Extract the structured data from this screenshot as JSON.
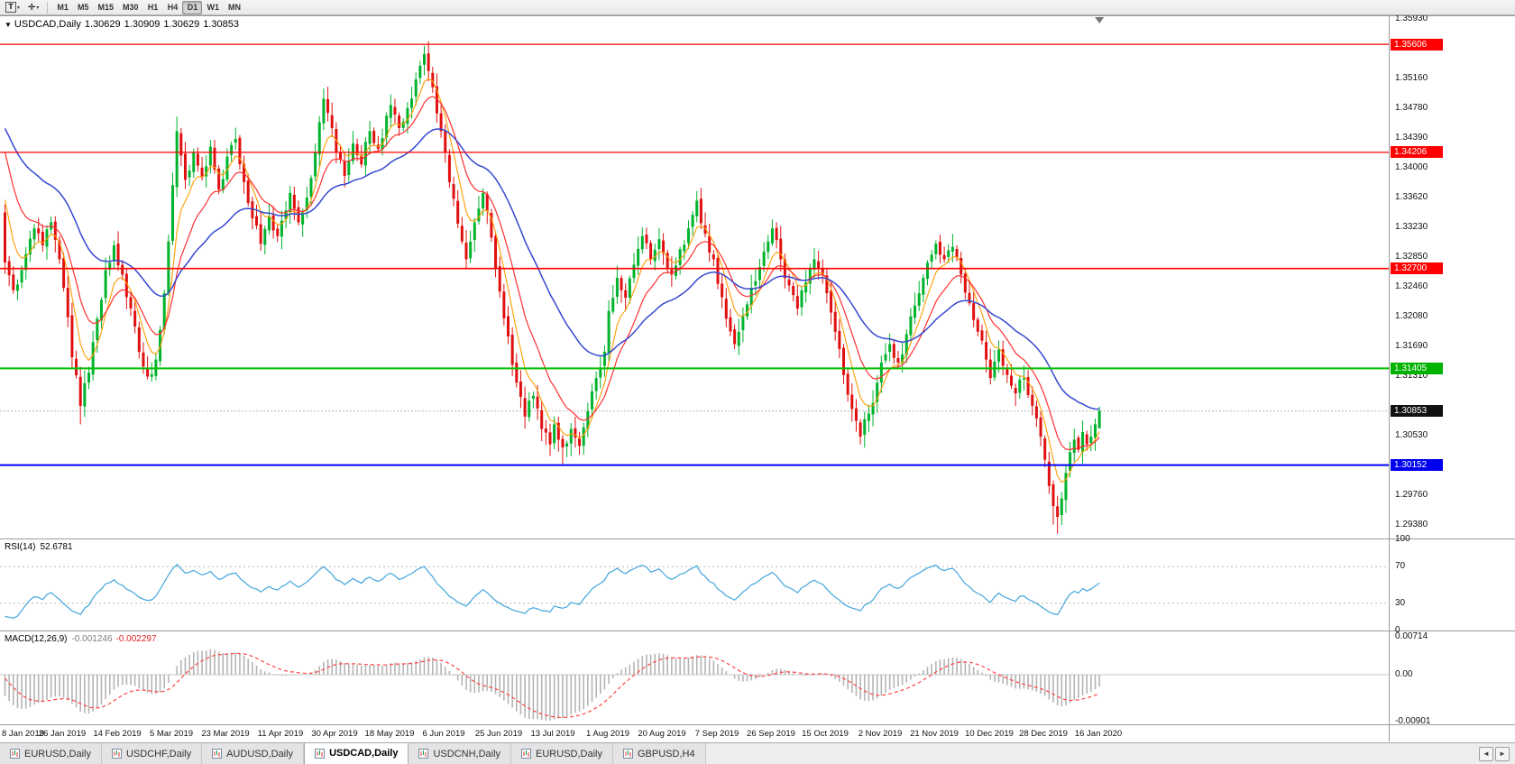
{
  "toolbar": {
    "tools": [
      {
        "label": "T",
        "name": "text-tool"
      },
      {
        "label": "✛",
        "name": "crosshair-tool"
      }
    ],
    "timeframes": [
      "M1",
      "M5",
      "M15",
      "M30",
      "H1",
      "H4",
      "D1",
      "W1",
      "MN"
    ],
    "active_timeframe": "D1"
  },
  "chart": {
    "header": {
      "symbol": "USDCAD,Daily",
      "open": "1.30629",
      "high": "1.30909",
      "low": "1.30629",
      "close": "1.30853"
    },
    "price_axis": {
      "labels": [
        {
          "text": "1.35930",
          "v": 1.3593
        },
        {
          "text": "1.35160",
          "v": 1.3516
        },
        {
          "text": "1.34780",
          "v": 1.3478
        },
        {
          "text": "1.34390",
          "v": 1.3439
        },
        {
          "text": "1.34000",
          "v": 1.34
        },
        {
          "text": "1.33620",
          "v": 1.3362
        },
        {
          "text": "1.33230",
          "v": 1.3323
        },
        {
          "text": "1.32850",
          "v": 1.3285
        },
        {
          "text": "1.32460",
          "v": 1.3246
        },
        {
          "text": "1.32080",
          "v": 1.3208
        },
        {
          "text": "1.31690",
          "v": 1.3169
        },
        {
          "text": "1.31310",
          "v": 1.3131
        },
        {
          "text": "1.30530",
          "v": 1.3053
        },
        {
          "text": "1.29760",
          "v": 1.2976
        },
        {
          "text": "1.29380",
          "v": 1.2938
        }
      ],
      "badges": [
        {
          "text": "1.35606",
          "v": 1.35606,
          "color": "#ff0000"
        },
        {
          "text": "1.34206",
          "v": 1.34206,
          "color": "#ff0000"
        },
        {
          "text": "1.32700",
          "v": 1.327,
          "color": "#ff0000"
        },
        {
          "text": "1.31405",
          "v": 1.31405,
          "color": "#00b300"
        },
        {
          "text": "1.30853",
          "v": 1.30853,
          "color": "#111111"
        },
        {
          "text": "1.30152",
          "v": 1.30152,
          "color": "#0000ee"
        }
      ]
    },
    "time_axis": {
      "labels": [
        "8 Jan 2019",
        "26 Jan 2019",
        "14 Feb 2019",
        "5 Mar 2019",
        "23 Mar 2019",
        "11 Apr 2019",
        "30 Apr 2019",
        "18 May 2019",
        "6 Jun 2019",
        "25 Jun 2019",
        "13 Jul 2019",
        "1 Aug 2019",
        "20 Aug 2019",
        "7 Sep 2019",
        "26 Sep 2019",
        "15 Oct 2019",
        "2 Nov 2019",
        "21 Nov 2019",
        "10 Dec 2019",
        "28 Dec 2019",
        "16 Jan 2020"
      ]
    }
  },
  "indicators": {
    "rsi": {
      "title": "RSI(14)",
      "value": "52.6781",
      "color": "#42a5dd",
      "scale": [
        {
          "text": "100",
          "v": 100
        },
        {
          "text": "70",
          "v": 70
        },
        {
          "text": "30",
          "v": 30
        },
        {
          "text": "0",
          "v": 0
        }
      ]
    },
    "macd": {
      "title": "MACD(12,26,9)",
      "value_main": "-0.001246",
      "value_signal": "-0.002297",
      "histogram_color": "#b4b4b4",
      "signal_color": "#ff4444",
      "scale": [
        {
          "text": "0.00714",
          "v": 0.00714
        },
        {
          "text": "0.00",
          "v": 0
        },
        {
          "text": "-0.00901",
          "v": -0.00901
        }
      ]
    }
  },
  "tabs": {
    "items": [
      {
        "label": "EURUSD,Daily",
        "active": false
      },
      {
        "label": "USDCHF,Daily",
        "active": false
      },
      {
        "label": "AUDUSD,Daily",
        "active": false
      },
      {
        "label": "USDCAD,Daily",
        "active": true
      },
      {
        "label": "USDCNH,Daily",
        "active": false
      },
      {
        "label": "EURUSD,Daily",
        "active": false
      },
      {
        "label": "GBPUSD,H4",
        "active": false
      }
    ],
    "nav": {
      "left": "◄",
      "right": "►"
    }
  },
  "chart_data": {
    "type": "candlestick",
    "symbol": "USDCAD",
    "timeframe": "Daily",
    "price_range": [
      1.292,
      1.3597
    ],
    "bars_count": 262,
    "noise": 0.0016,
    "candle_colors": {
      "bull": "#00b32c",
      "bear": "#e01010"
    },
    "hlines": [
      {
        "v": 1.35606,
        "color": "#ff0000",
        "w": 1.2
      },
      {
        "v": 1.34206,
        "color": "#ff0000",
        "w": 1.2
      },
      {
        "v": 1.327,
        "color": "#ff0000",
        "w": 1.6
      },
      {
        "v": 1.31405,
        "color": "#00c000",
        "w": 2
      },
      {
        "v": 1.30152,
        "color": "#0000ff",
        "w": 2
      }
    ],
    "current_price": {
      "v": 1.30853,
      "line_color": "#b8b8b8"
    },
    "moving_averages": [
      {
        "period": 6,
        "color": "#ff9d00",
        "w": 1.1
      },
      {
        "period": 13,
        "color": "#ff3030",
        "w": 1.2
      },
      {
        "period": 34,
        "color": "#3548cf",
        "w": 1.5
      }
    ],
    "last_bar": {
      "open": 1.30629,
      "high": 1.30909,
      "low": 1.30629,
      "close": 1.30853
    },
    "wick_overrides": {
      "18": {
        "l": 1.3068
      },
      "41": {
        "h": 1.3467
      },
      "100": {
        "h": 1.3559
      },
      "133": {
        "l": 1.3016
      },
      "250": {
        "l": 1.2938
      },
      "251": {
        "l": 1.2926
      }
    },
    "prehistory_anchors": [
      [
        0,
        1.315
      ],
      [
        15,
        1.331
      ],
      [
        30,
        1.349
      ],
      [
        42,
        1.358
      ],
      [
        48,
        1.36
      ],
      [
        52,
        1.35
      ],
      [
        55,
        1.342
      ],
      [
        57,
        1.338
      ],
      [
        58,
        1.3355
      ],
      [
        59,
        1.334
      ]
    ],
    "close_anchors": [
      [
        0,
        1.3278
      ],
      [
        2,
        1.3242
      ],
      [
        4,
        1.3268
      ],
      [
        7,
        1.3322
      ],
      [
        9,
        1.33
      ],
      [
        11,
        1.333
      ],
      [
        13,
        1.3282
      ],
      [
        14,
        1.3245
      ],
      [
        16,
        1.3155
      ],
      [
        18,
        1.3092
      ],
      [
        20,
        1.3135
      ],
      [
        22,
        1.3205
      ],
      [
        24,
        1.3268
      ],
      [
        26,
        1.33
      ],
      [
        28,
        1.3262
      ],
      [
        30,
        1.3218
      ],
      [
        32,
        1.3162
      ],
      [
        34,
        1.313
      ],
      [
        36,
        1.3152
      ],
      [
        38,
        1.3238
      ],
      [
        39,
        1.3305
      ],
      [
        40,
        1.3378
      ],
      [
        41,
        1.3448
      ],
      [
        43,
        1.3385
      ],
      [
        45,
        1.342
      ],
      [
        47,
        1.3388
      ],
      [
        49,
        1.3428
      ],
      [
        51,
        1.3372
      ],
      [
        53,
        1.3415
      ],
      [
        55,
        1.3438
      ],
      [
        57,
        1.3382
      ],
      [
        59,
        1.3335
      ],
      [
        61,
        1.3302
      ],
      [
        63,
        1.3338
      ],
      [
        65,
        1.3312
      ],
      [
        66,
        1.3332
      ],
      [
        68,
        1.3368
      ],
      [
        70,
        1.333
      ],
      [
        72,
        1.3362
      ],
      [
        74,
        1.342
      ],
      [
        76,
        1.349
      ],
      [
        78,
        1.3452
      ],
      [
        79,
        1.342
      ],
      [
        81,
        1.339
      ],
      [
        83,
        1.3432
      ],
      [
        85,
        1.3405
      ],
      [
        87,
        1.3448
      ],
      [
        89,
        1.3425
      ],
      [
        91,
        1.3468
      ],
      [
        92,
        1.3482
      ],
      [
        94,
        1.3452
      ],
      [
        96,
        1.3478
      ],
      [
        98,
        1.3515
      ],
      [
        100,
        1.3548
      ],
      [
        102,
        1.3505
      ],
      [
        104,
        1.3448
      ],
      [
        105,
        1.342
      ],
      [
        106,
        1.3382
      ],
      [
        108,
        1.3328
      ],
      [
        110,
        1.3282
      ],
      [
        112,
        1.333
      ],
      [
        114,
        1.3368
      ],
      [
        116,
        1.331
      ],
      [
        118,
        1.324
      ],
      [
        120,
        1.3182
      ],
      [
        122,
        1.3122
      ],
      [
        124,
        1.3078
      ],
      [
        126,
        1.3105
      ],
      [
        128,
        1.3062
      ],
      [
        130,
        1.3042
      ],
      [
        131,
        1.3068
      ],
      [
        133,
        1.3038
      ],
      [
        135,
        1.3062
      ],
      [
        137,
        1.304
      ],
      [
        139,
        1.3085
      ],
      [
        141,
        1.3128
      ],
      [
        143,
        1.3162
      ],
      [
        144,
        1.3215
      ],
      [
        146,
        1.3258
      ],
      [
        148,
        1.3232
      ],
      [
        150,
        1.3275
      ],
      [
        152,
        1.3312
      ],
      [
        154,
        1.3282
      ],
      [
        156,
        1.3308
      ],
      [
        157,
        1.329
      ],
      [
        159,
        1.3262
      ],
      [
        161,
        1.3295
      ],
      [
        163,
        1.3322
      ],
      [
        165,
        1.3358
      ],
      [
        167,
        1.3315
      ],
      [
        169,
        1.3282
      ],
      [
        170,
        1.325
      ],
      [
        172,
        1.3205
      ],
      [
        174,
        1.3172
      ],
      [
        176,
        1.3208
      ],
      [
        178,
        1.3245
      ],
      [
        180,
        1.3272
      ],
      [
        182,
        1.3305
      ],
      [
        183,
        1.3322
      ],
      [
        185,
        1.3282
      ],
      [
        187,
        1.3248
      ],
      [
        189,
        1.3218
      ],
      [
        191,
        1.3252
      ],
      [
        193,
        1.3282
      ],
      [
        195,
        1.3262
      ],
      [
        196,
        1.3238
      ],
      [
        198,
        1.3188
      ],
      [
        200,
        1.3132
      ],
      [
        202,
        1.3088
      ],
      [
        204,
        1.3052
      ],
      [
        206,
        1.3082
      ],
      [
        208,
        1.3122
      ],
      [
        209,
        1.3148
      ],
      [
        211,
        1.3172
      ],
      [
        213,
        1.3148
      ],
      [
        215,
        1.3185
      ],
      [
        217,
        1.3222
      ],
      [
        219,
        1.3258
      ],
      [
        221,
        1.3288
      ],
      [
        222,
        1.3302
      ],
      [
        224,
        1.3282
      ],
      [
        226,
        1.3298
      ],
      [
        228,
        1.3262
      ],
      [
        230,
        1.3225
      ],
      [
        232,
        1.3188
      ],
      [
        234,
        1.3152
      ],
      [
        235,
        1.3128
      ],
      [
        237,
        1.3165
      ],
      [
        239,
        1.3132
      ],
      [
        241,
        1.3108
      ],
      [
        243,
        1.3128
      ],
      [
        245,
        1.3092
      ],
      [
        247,
        1.3052
      ],
      [
        248,
        1.3022
      ],
      [
        249,
        1.2988
      ],
      [
        250,
        1.2962
      ],
      [
        251,
        1.2948
      ],
      [
        252,
        1.2972
      ],
      [
        253,
        1.3005
      ],
      [
        254,
        1.3032
      ],
      [
        255,
        1.3048
      ],
      [
        256,
        1.3035
      ],
      [
        257,
        1.3058
      ],
      [
        258,
        1.3042
      ],
      [
        259,
        1.3052
      ],
      [
        260,
        1.3068
      ],
      [
        261,
        1.30853
      ]
    ]
  }
}
